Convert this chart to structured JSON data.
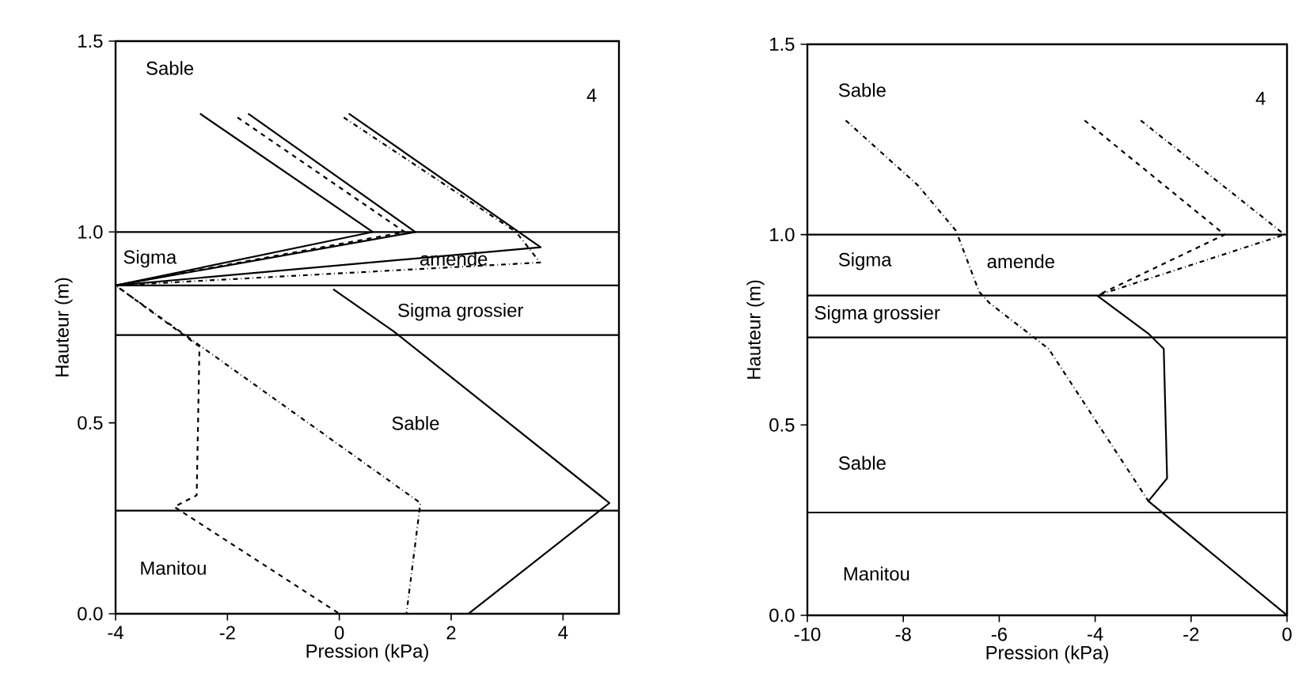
{
  "chart_data": [
    {
      "type": "line",
      "xlabel": "Pression (kPa)",
      "ylabel": "Hauteur (m)",
      "xlim": [
        -4,
        5
      ],
      "ylim": [
        0,
        1.5
      ],
      "xticks": [
        -4,
        -2,
        0,
        2,
        4
      ],
      "yticks": [
        {
          "value": 0,
          "label": "0.0"
        },
        {
          "value": 0.5,
          "label": "0.5"
        },
        {
          "value": 1,
          "label": "1.0"
        },
        {
          "value": 1.5,
          "label": "1.5"
        }
      ],
      "series": [
        {
          "color": "#000000",
          "line_style": "solid",
          "x": [
            -2.49,
            0.6,
            -4.0
          ],
          "values": [
            1.31,
            1.0,
            0.86
          ]
        },
        {
          "color": "#000000",
          "line_style": "dashed",
          "x": [
            -1.82,
            1.17,
            -4.0,
            -2.5,
            -2.55,
            -2.95,
            0.0
          ],
          "values": [
            1.3,
            1.0,
            0.86,
            0.7,
            0.31,
            0.28,
            0.0
          ]
        },
        {
          "color": "#000000",
          "line_style": "solid",
          "x": [
            -1.63,
            1.36,
            -4.0
          ],
          "values": [
            1.31,
            1.0,
            0.86
          ]
        },
        {
          "color": "#000000",
          "line_style": "dotted",
          "x": [
            0.08,
            3.16,
            3.59,
            -4.0,
            1.45,
            1.2
          ],
          "values": [
            1.3,
            1.0,
            0.92,
            0.86,
            0.29,
            0.0
          ]
        },
        {
          "color": "#000000",
          "line_style": "solid",
          "x": [
            0.17,
            3.21,
            3.6,
            -4.0
          ],
          "values": [
            1.31,
            1.0,
            0.96,
            0.86
          ]
        },
        {
          "color": "#000000",
          "line_style": "solid",
          "x": [
            -0.11,
            0.97,
            4.83,
            2.31
          ],
          "values": [
            0.85,
            0.74,
            0.29,
            0.0
          ]
        }
      ],
      "ref_lines": [
        {
          "axis": "y",
          "value": 1.0
        },
        {
          "axis": "y",
          "value": 0.86
        },
        {
          "axis": "y",
          "value": 0.73
        },
        {
          "axis": "y",
          "value": 0.27
        }
      ],
      "annotations": [
        "4",
        "Sable",
        "Sigma",
        "amende",
        "Sigma grossier",
        "Sable",
        "Manitou"
      ]
    },
    {
      "type": "line",
      "xlabel": "Pression (kPa)",
      "ylabel": "Hauteur (m)",
      "xlim": [
        -10,
        0
      ],
      "ylim": [
        0,
        1.5
      ],
      "xticks": [
        -10,
        -8,
        -6,
        -4,
        -2,
        0
      ],
      "yticks": [
        {
          "value": 0,
          "label": "0.0"
        },
        {
          "value": 0.5,
          "label": "0.5"
        },
        {
          "value": 1,
          "label": "1.0"
        },
        {
          "value": 1.5,
          "label": "1.5"
        }
      ],
      "series": [
        {
          "color": "#000000",
          "line_style": "dotted",
          "x": [
            -9.2,
            -7.7,
            -6.9,
            -6.42,
            -6.2,
            -4.97,
            -2.89
          ],
          "values": [
            1.3,
            1.13,
            1.01,
            0.85,
            0.82,
            0.7,
            0.3
          ]
        },
        {
          "color": "#000000",
          "line_style": "solid",
          "x": [
            0.0,
            -2.89,
            -2.5,
            -2.57,
            -2.89,
            -3.96
          ],
          "values": [
            0.0,
            0.3,
            0.36,
            0.7,
            0.74,
            0.84
          ]
        },
        {
          "color": "#000000",
          "line_style": "dashed",
          "x": [
            -4.22,
            -1.3,
            -3.96
          ],
          "values": [
            1.3,
            1.0,
            0.84
          ]
        },
        {
          "color": "#000000",
          "line_style": "dotted",
          "x": [
            -3.05,
            -0.05,
            -3.96
          ],
          "values": [
            1.3,
            1.0,
            0.84
          ]
        }
      ],
      "ref_lines": [
        {
          "axis": "y",
          "value": 1.0
        },
        {
          "axis": "y",
          "value": 0.84
        },
        {
          "axis": "y",
          "value": 0.73
        },
        {
          "axis": "y",
          "value": 0.27
        }
      ],
      "annotations": [
        "4",
        "Sable",
        "Sigma",
        "amende",
        "Sigma grossier",
        "Sable",
        "Manitou"
      ]
    }
  ]
}
